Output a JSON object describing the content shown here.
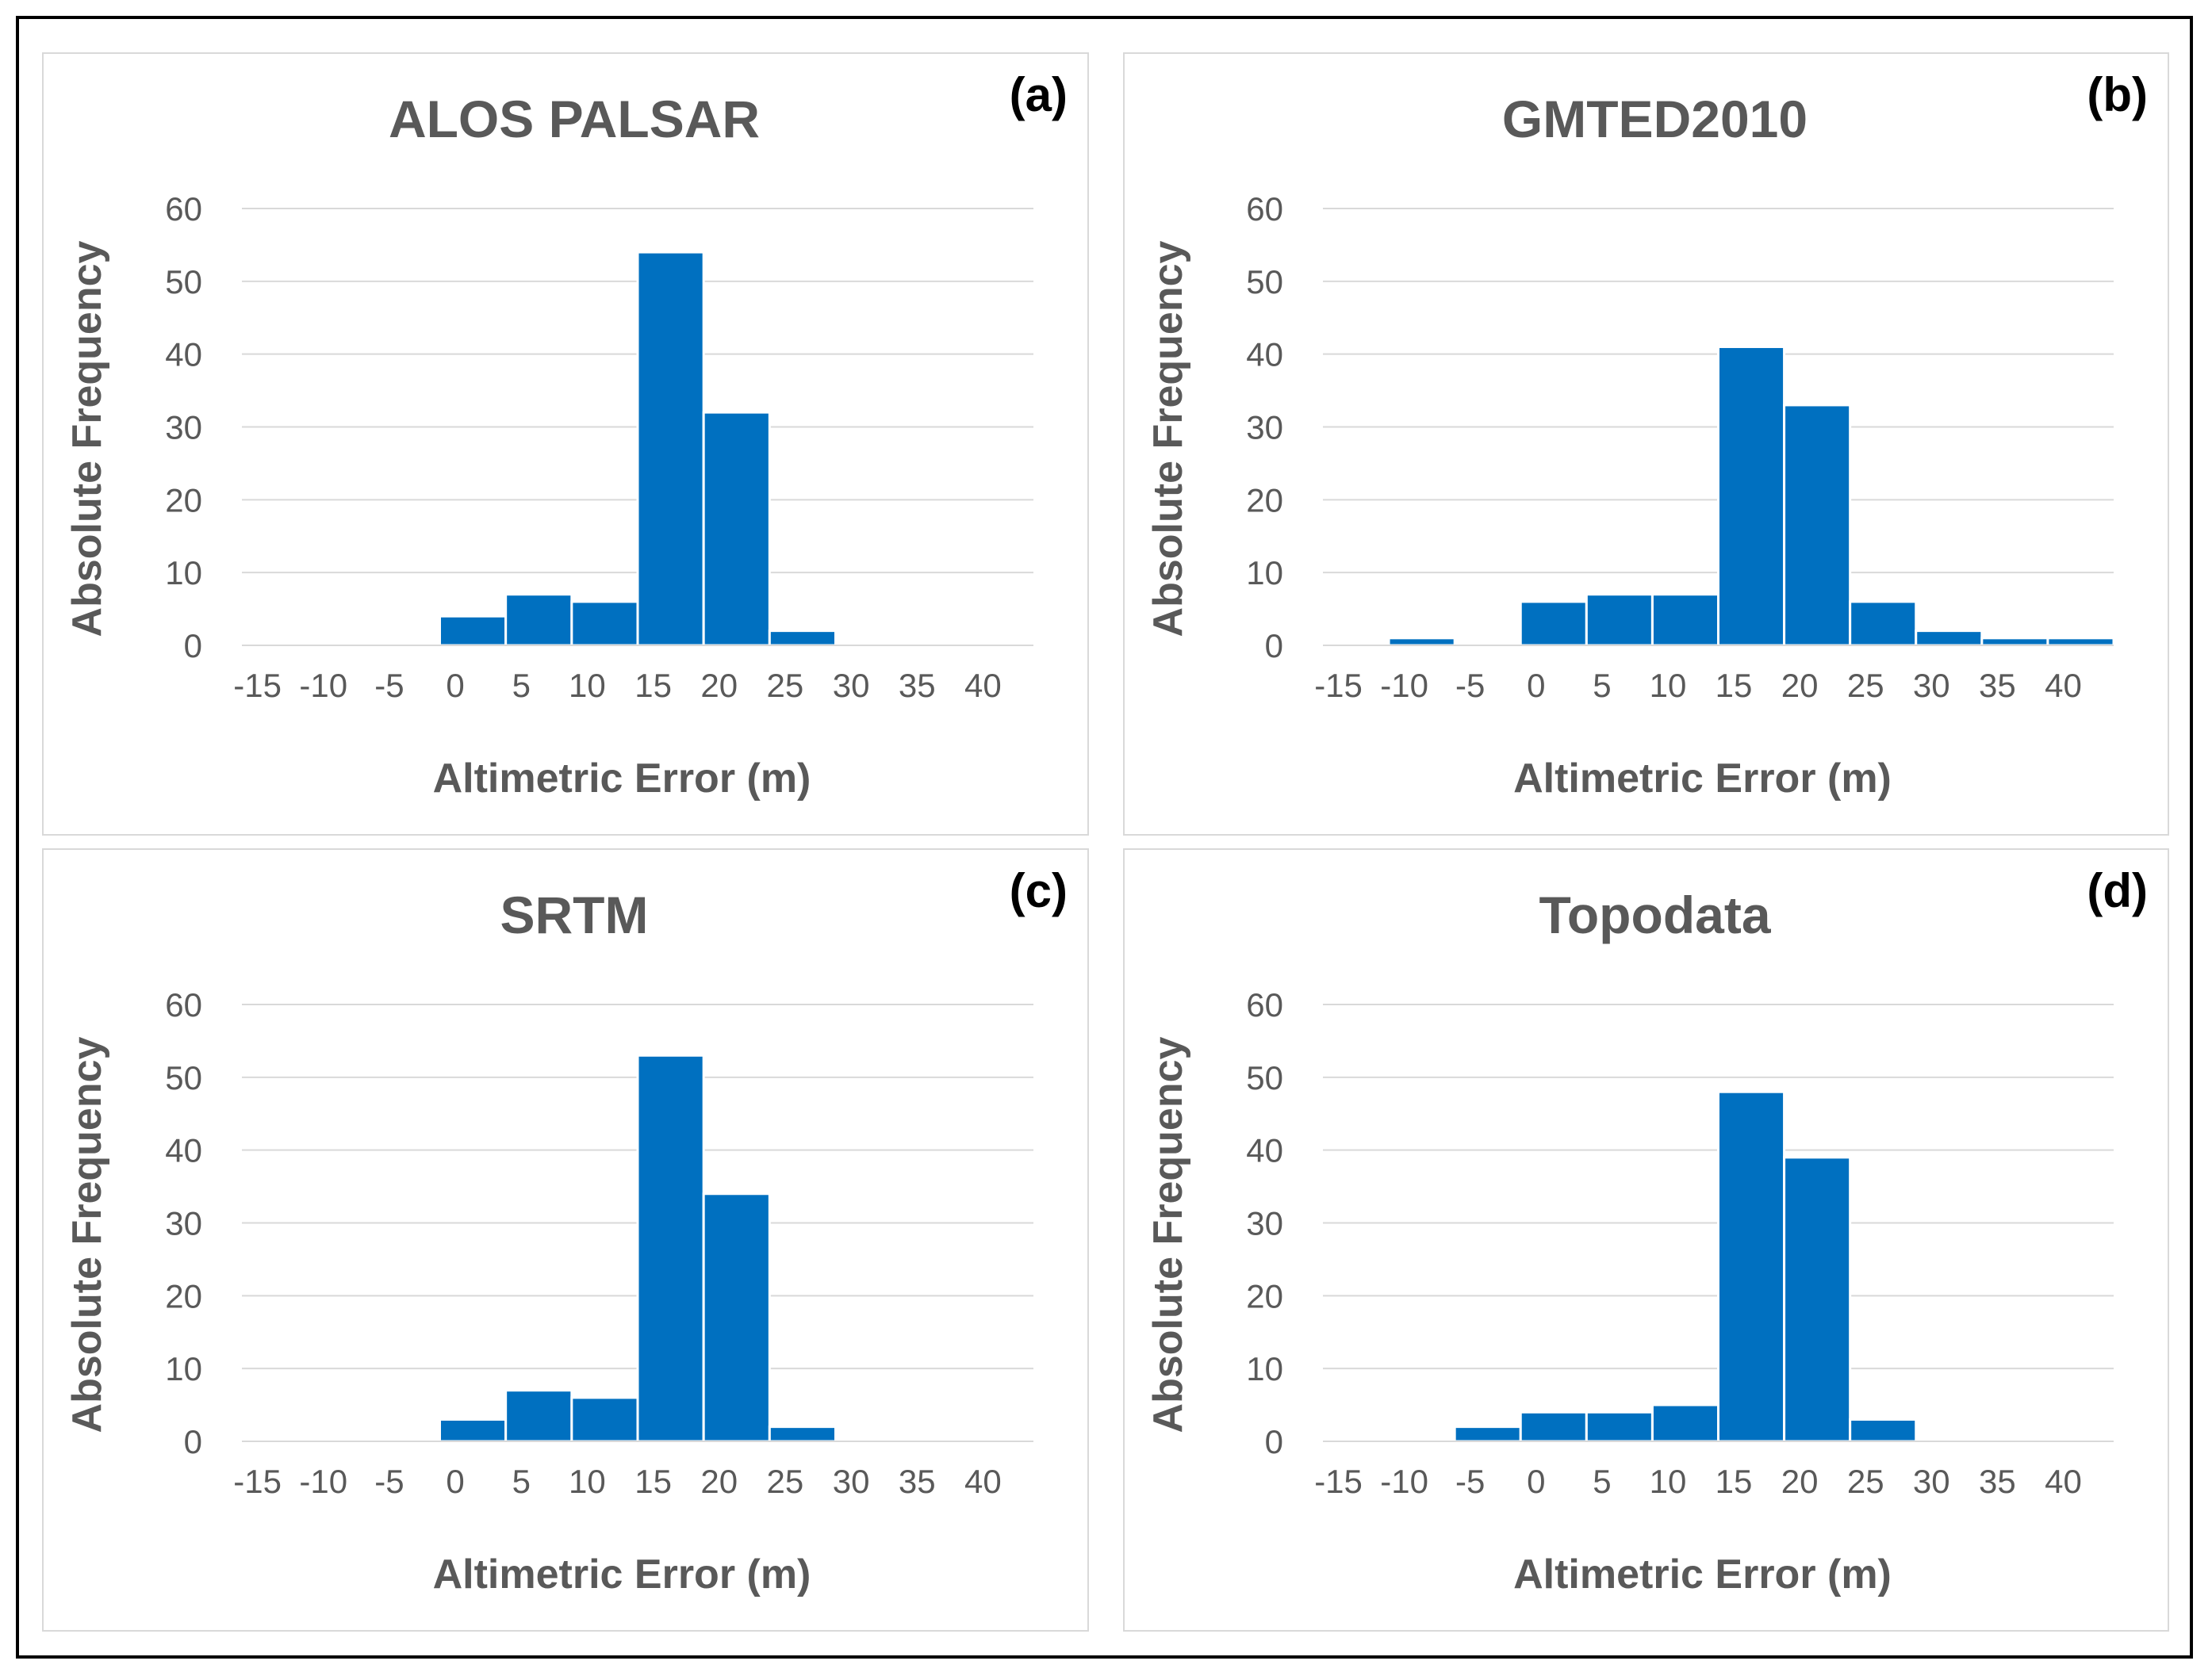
{
  "chart_data": [
    {
      "type": "bar",
      "title": "ALOS PALSAR",
      "panel_tag": "(a)",
      "xlabel": "Altimetric Error (m)",
      "ylabel": "Absolute Frequency",
      "categories": [
        "-15",
        "-10",
        "-5",
        "0",
        "5",
        "10",
        "15",
        "20",
        "25",
        "30",
        "35",
        "40"
      ],
      "values": [
        0,
        0,
        0,
        4,
        7,
        6,
        54,
        32,
        2,
        0,
        0,
        0
      ],
      "ylim": [
        0,
        60
      ],
      "yticks": [
        "0",
        "10",
        "20",
        "30",
        "40",
        "50",
        "60"
      ],
      "color": "#0070c0",
      "grid": true
    },
    {
      "type": "bar",
      "title": "GMTED2010",
      "panel_tag": "(b)",
      "xlabel": "Altimetric Error (m)",
      "ylabel": "Absolute Frequency",
      "categories": [
        "-15",
        "-10",
        "-5",
        "0",
        "5",
        "10",
        "15",
        "20",
        "25",
        "30",
        "35",
        "40"
      ],
      "values": [
        0,
        1,
        0,
        6,
        7,
        7,
        41,
        33,
        6,
        2,
        1,
        1
      ],
      "ylim": [
        0,
        60
      ],
      "yticks": [
        "0",
        "10",
        "20",
        "30",
        "40",
        "50",
        "60"
      ],
      "color": "#0070c0",
      "grid": true
    },
    {
      "type": "bar",
      "title": "SRTM",
      "panel_tag": "(c)",
      "xlabel": "Altimetric Error (m)",
      "ylabel": "Absolute Frequency",
      "categories": [
        "-15",
        "-10",
        "-5",
        "0",
        "5",
        "10",
        "15",
        "20",
        "25",
        "30",
        "35",
        "40"
      ],
      "values": [
        0,
        0,
        0,
        3,
        7,
        6,
        53,
        34,
        2,
        0,
        0,
        0
      ],
      "ylim": [
        0,
        60
      ],
      "yticks": [
        "0",
        "10",
        "20",
        "30",
        "40",
        "50",
        "60"
      ],
      "color": "#0070c0",
      "grid": true
    },
    {
      "type": "bar",
      "title": "Topodata",
      "panel_tag": "(d)",
      "xlabel": "Altimetric Error (m)",
      "ylabel": "Absolute Frequency",
      "categories": [
        "-15",
        "-10",
        "-5",
        "0",
        "5",
        "10",
        "15",
        "20",
        "25",
        "30",
        "35",
        "40"
      ],
      "values": [
        0,
        0,
        2,
        4,
        4,
        5,
        48,
        39,
        3,
        0,
        0,
        0
      ],
      "ylim": [
        0,
        60
      ],
      "yticks": [
        "0",
        "10",
        "20",
        "30",
        "40",
        "50",
        "60"
      ],
      "color": "#0070c0",
      "grid": true
    }
  ]
}
